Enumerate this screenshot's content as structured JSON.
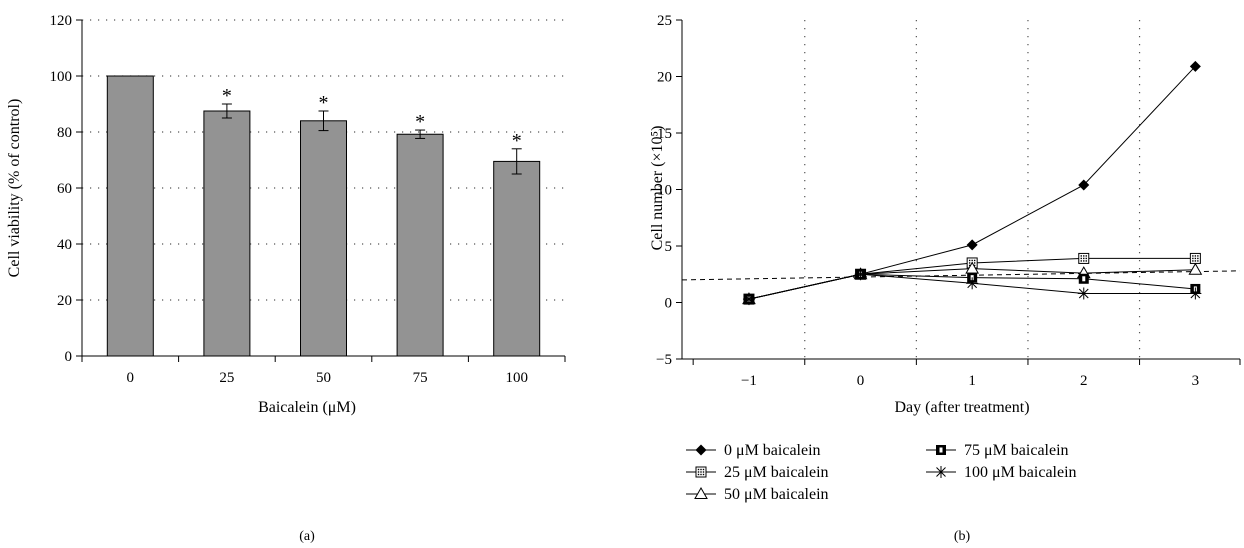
{
  "chart_data": [
    {
      "type": "bar",
      "panel_label": "(a)",
      "xlabel": "Baicalein (μM)",
      "ylabel": "Cell viability (% of control)",
      "categories": [
        "0",
        "25",
        "50",
        "75",
        "100"
      ],
      "values": [
        100,
        87.5,
        84,
        79.2,
        69.5
      ],
      "errors": [
        0,
        2.5,
        3.5,
        1.5,
        4.5
      ],
      "significance": [
        "",
        "*",
        "*",
        "*",
        "*"
      ],
      "ylim": [
        0,
        120
      ],
      "yticks": [
        "0",
        "20",
        "40",
        "60",
        "80",
        "100",
        "120"
      ],
      "grid": "horizontal dotted",
      "bar_color": "#939393"
    },
    {
      "type": "line",
      "panel_label": "(b)",
      "xlabel": "Day (after treatment)",
      "ylabel": "Cell number (×10⁵)",
      "x": [
        -1,
        0,
        1,
        2,
        3
      ],
      "xticks": [
        "−1",
        "0",
        "1",
        "2",
        "3"
      ],
      "ylim": [
        -5,
        25
      ],
      "yticks": [
        "−5",
        "0",
        "5",
        "10",
        "15",
        "20",
        "25"
      ],
      "grid": "vertical dotted",
      "legend_position": "bottom",
      "series": [
        {
          "name": "0 μM baicalein",
          "marker": "diamond",
          "values": [
            0.3,
            2.5,
            5.1,
            10.4,
            20.9
          ]
        },
        {
          "name": "25 μM baicalein",
          "marker": "dotted-square",
          "values": [
            0.3,
            2.5,
            3.5,
            3.9,
            3.9
          ]
        },
        {
          "name": "50 μM baicalein",
          "marker": "triangle",
          "values": [
            0.3,
            2.5,
            3.0,
            2.6,
            2.9
          ]
        },
        {
          "name": "75 μM baicalein",
          "marker": "filled-square",
          "values": [
            0.3,
            2.5,
            2.2,
            2.1,
            1.2
          ]
        },
        {
          "name": "100 μM baicalein",
          "marker": "asterisk",
          "values": [
            0.3,
            2.5,
            1.7,
            0.8,
            0.8
          ]
        }
      ],
      "trendline": {
        "style": "dashed",
        "x": [
          -1.6,
          3.4
        ],
        "y": [
          2.0,
          2.8
        ]
      }
    }
  ]
}
